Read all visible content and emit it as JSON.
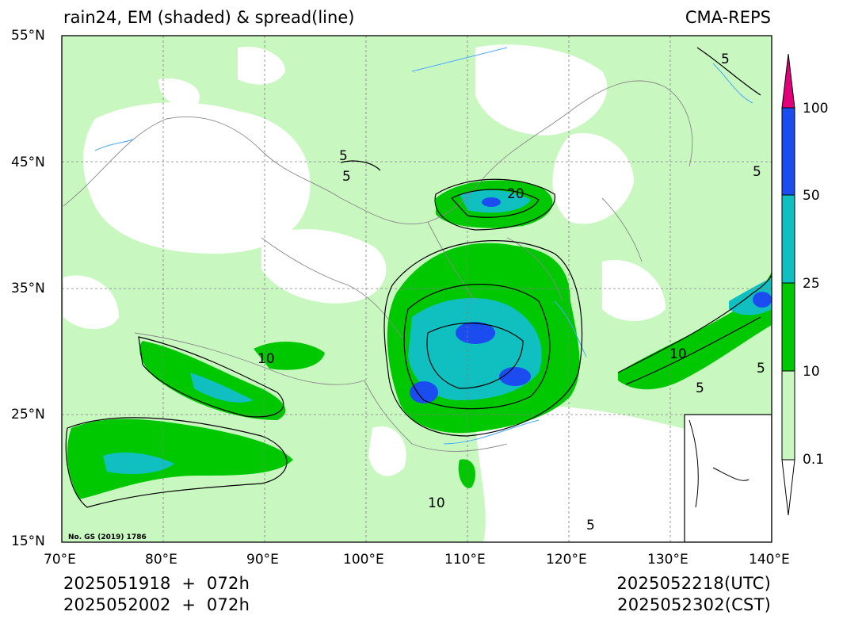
{
  "header": {
    "title_left": "rain24, EM (shaded) & spread(line)",
    "title_right": "CMA-REPS"
  },
  "map": {
    "lat_ticks": [
      "55°N",
      "45°N",
      "35°N",
      "25°N",
      "15°N"
    ],
    "lon_ticks": [
      "70°E",
      "80°E",
      "90°E",
      "100°E",
      "110°E",
      "120°E",
      "130°E",
      "140°E"
    ],
    "review_number": "No. GS (2019) 1786",
    "contour_labels": [
      "5",
      "5",
      "20",
      "10",
      "10",
      "5",
      "5",
      "10",
      "5",
      "5",
      "5"
    ]
  },
  "colorbar": {
    "labels": [
      "100",
      "50",
      "25",
      "10",
      "0.1"
    ],
    "colors": [
      "#e0007a",
      "#1a4cf0",
      "#10c0c0",
      "#00c800",
      "#c8f8c0",
      "#ffffff"
    ]
  },
  "footer": {
    "init_utc": "2025051918  +  072h",
    "init_cst": "2025052002  +  072h",
    "valid_utc": "2025052218(UTC)",
    "valid_cst": "2025052302(CST)"
  }
}
